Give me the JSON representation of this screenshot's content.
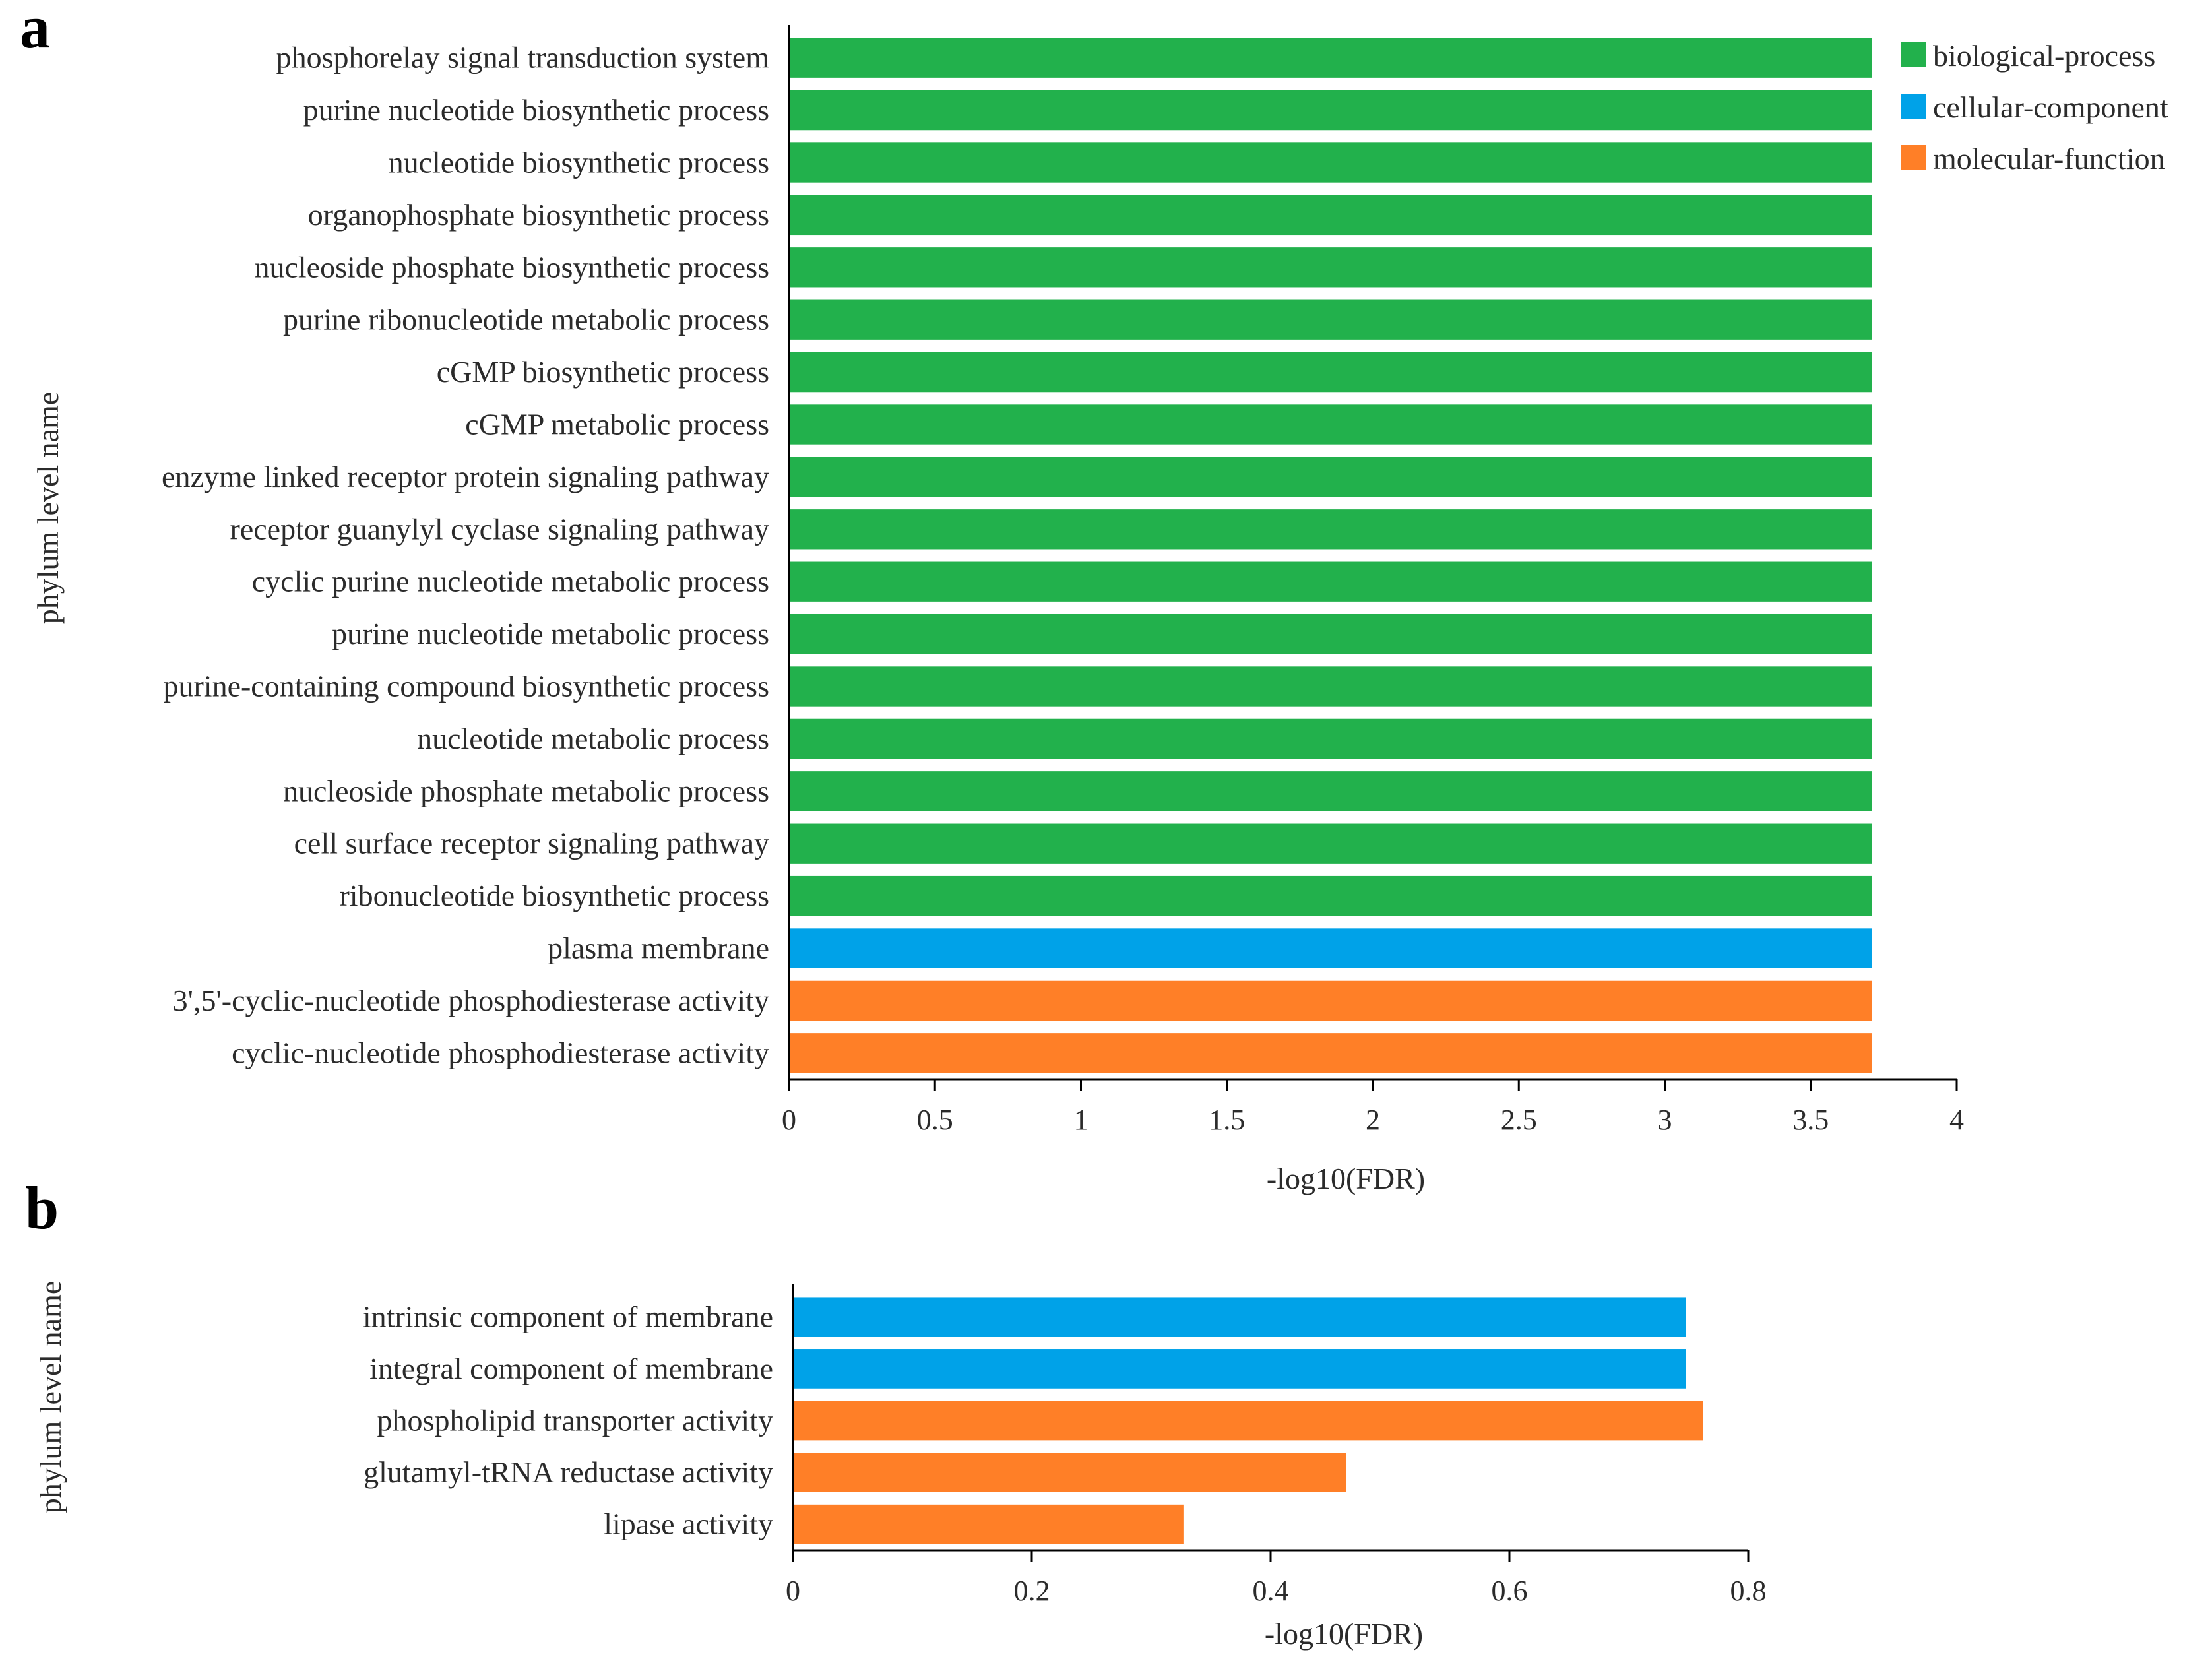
{
  "chart_data": [
    {
      "panel": "a",
      "type": "bar",
      "orientation": "horizontal",
      "xlabel": "-log10(FDR)",
      "ylabel": "phylum level name",
      "xlim": [
        0,
        4
      ],
      "xticks": [
        "0",
        "0.5",
        "1",
        "1.5",
        "2",
        "2.5",
        "3",
        "3.5",
        "4"
      ],
      "legend": {
        "placement": "top-right",
        "entries": [
          {
            "name": "biological-process",
            "color": "#22b14c"
          },
          {
            "name": "cellular-component",
            "color": "#00a2e8"
          },
          {
            "name": "molecular-function",
            "color": "#ff7f27"
          }
        ]
      },
      "bars": [
        {
          "label": "phosphorelay signal transduction system",
          "value": 3.71,
          "group": "biological-process"
        },
        {
          "label": "purine nucleotide biosynthetic process",
          "value": 3.71,
          "group": "biological-process"
        },
        {
          "label": "nucleotide biosynthetic process",
          "value": 3.71,
          "group": "biological-process"
        },
        {
          "label": "organophosphate biosynthetic process",
          "value": 3.71,
          "group": "biological-process"
        },
        {
          "label": "nucleoside phosphate biosynthetic process",
          "value": 3.71,
          "group": "biological-process"
        },
        {
          "label": "purine ribonucleotide metabolic process",
          "value": 3.71,
          "group": "biological-process"
        },
        {
          "label": "cGMP biosynthetic process",
          "value": 3.71,
          "group": "biological-process"
        },
        {
          "label": "cGMP metabolic process",
          "value": 3.71,
          "group": "biological-process"
        },
        {
          "label": "enzyme linked receptor protein signaling pathway",
          "value": 3.71,
          "group": "biological-process"
        },
        {
          "label": "receptor guanylyl cyclase signaling pathway",
          "value": 3.71,
          "group": "biological-process"
        },
        {
          "label": "cyclic purine nucleotide metabolic process",
          "value": 3.71,
          "group": "biological-process"
        },
        {
          "label": "purine nucleotide metabolic process",
          "value": 3.71,
          "group": "biological-process"
        },
        {
          "label": "purine-containing compound biosynthetic process",
          "value": 3.71,
          "group": "biological-process"
        },
        {
          "label": "nucleotide metabolic process",
          "value": 3.71,
          "group": "biological-process"
        },
        {
          "label": "nucleoside phosphate metabolic process",
          "value": 3.71,
          "group": "biological-process"
        },
        {
          "label": "cell surface receptor signaling pathway",
          "value": 3.71,
          "group": "biological-process"
        },
        {
          "label": "ribonucleotide biosynthetic process",
          "value": 3.71,
          "group": "biological-process"
        },
        {
          "label": "plasma membrane",
          "value": 3.71,
          "group": "cellular-component"
        },
        {
          "label": "3',5'-cyclic-nucleotide phosphodiesterase activity",
          "value": 3.71,
          "group": "molecular-function"
        },
        {
          "label": "cyclic-nucleotide phosphodiesterase activity",
          "value": 3.71,
          "group": "molecular-function"
        }
      ]
    },
    {
      "panel": "b",
      "type": "bar",
      "orientation": "horizontal",
      "xlabel": "-log10(FDR)",
      "ylabel": "phylum level name",
      "xlim": [
        0,
        0.8
      ],
      "xticks": [
        "0",
        "0.2",
        "0.4",
        "0.6",
        "0.8"
      ],
      "bars": [
        {
          "label": "intrinsic component of membrane",
          "value": 0.748,
          "group": "cellular-component"
        },
        {
          "label": "integral component of membrane",
          "value": 0.748,
          "group": "cellular-component"
        },
        {
          "label": "phospholipid transporter activity",
          "value": 0.762,
          "group": "molecular-function"
        },
        {
          "label": "glutamyl-tRNA reductase activity",
          "value": 0.463,
          "group": "molecular-function"
        },
        {
          "label": "lipase activity",
          "value": 0.327,
          "group": "molecular-function"
        }
      ]
    }
  ]
}
